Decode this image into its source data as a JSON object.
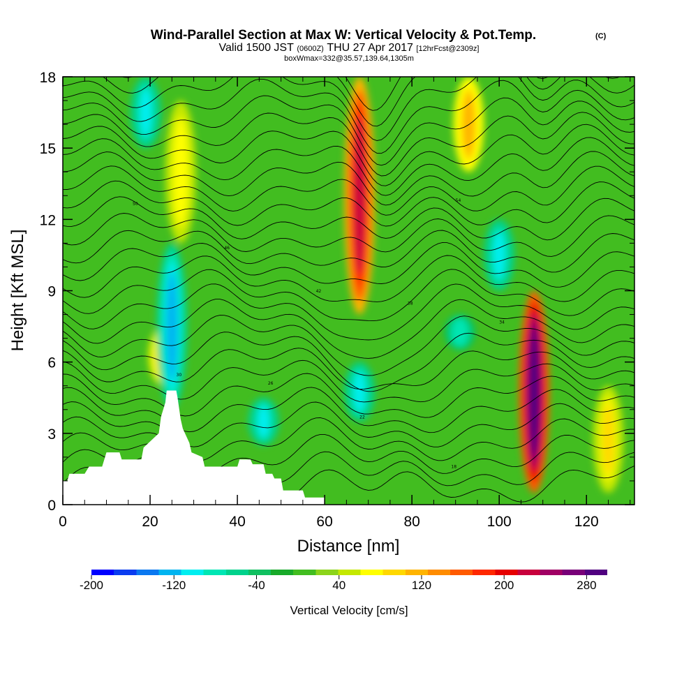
{
  "titles": {
    "main": "Wind-Parallel Section at Max W: Vertical Velocity & Pot.Temp.",
    "copyright": "(C)",
    "valid_prefix": "Valid 1500 JST",
    "valid_utc": "(0600Z)",
    "valid_date": "THU 27 Apr 2017",
    "forecast": "[12hrFcst@2309z]",
    "box": "boxWmax=332@35.57,139.64,1305m"
  },
  "chart_data": {
    "type": "heatmap",
    "xlabel": "Distance [nm]",
    "ylabel": "Height [Kft MSL]",
    "xlim": [
      0,
      131
    ],
    "ylim": [
      0,
      18
    ],
    "x_ticks": [
      0,
      20,
      40,
      60,
      80,
      100,
      120
    ],
    "y_ticks": [
      0,
      3,
      6,
      9,
      12,
      15,
      18
    ],
    "colorbar": {
      "label": "Vertical Velocity [cm/s]",
      "range": [
        -200,
        300
      ],
      "tick_values": [
        -200,
        -120,
        -40,
        40,
        120,
        200,
        280
      ],
      "tick_labels": [
        "-200",
        "-120",
        "-40",
        "40",
        "120",
        "200",
        "280"
      ],
      "colors": [
        "#0000ff",
        "#0a3cf0",
        "#0a78f0",
        "#00b4f0",
        "#00eef0",
        "#00e6b4",
        "#00d28c",
        "#10c060",
        "#18aa2a",
        "#42bd20",
        "#8cd41a",
        "#c4e800",
        "#ffff00",
        "#ffd800",
        "#ffb400",
        "#ff8c00",
        "#ff5a00",
        "#ff2800",
        "#e60000",
        "#c8003c",
        "#a00064",
        "#780078",
        "#500080"
      ]
    },
    "w_features": [
      {
        "type": "updraft",
        "x": 68,
        "z_bottom": 8,
        "z_top": 18,
        "peak_cm_s": 220
      },
      {
        "type": "updraft",
        "x": 108,
        "z_bottom": 0.5,
        "z_top": 9,
        "peak_cm_s": 300
      },
      {
        "type": "updraft",
        "x": 23,
        "z_bottom": 5,
        "z_top": 7.5,
        "peak_cm_s": 110
      },
      {
        "type": "updraft",
        "x": 27,
        "z_bottom": 11,
        "z_top": 17,
        "peak_cm_s": 80
      },
      {
        "type": "updraft",
        "x": 125,
        "z_bottom": 0.5,
        "z_top": 5,
        "peak_cm_s": 90
      },
      {
        "type": "updraft",
        "x": 93,
        "z_bottom": 14,
        "z_top": 18,
        "peak_cm_s": 120
      },
      {
        "type": "downdraft",
        "x": 25,
        "z_bottom": 4,
        "z_top": 11,
        "peak_cm_s": -120
      },
      {
        "type": "downdraft",
        "x": 68,
        "z_bottom": 3.5,
        "z_top": 6,
        "peak_cm_s": -100
      },
      {
        "type": "downdraft",
        "x": 46,
        "z_bottom": 2.5,
        "z_top": 4.5,
        "peak_cm_s": -100
      },
      {
        "type": "downdraft",
        "x": 100,
        "z_bottom": 9,
        "z_top": 12,
        "peak_cm_s": -100
      },
      {
        "type": "downdraft",
        "x": 91,
        "z_bottom": 6.5,
        "z_top": 8,
        "peak_cm_s": -90
      },
      {
        "type": "downdraft",
        "x": 19,
        "z_bottom": 15,
        "z_top": 18,
        "peak_cm_s": -100
      }
    ],
    "terrain": {
      "x": [
        0,
        1,
        1.5,
        5,
        6,
        9,
        10,
        13,
        13.5,
        18,
        18.5,
        22,
        22.5,
        23.5,
        23.8,
        26,
        26.3,
        27,
        27.5,
        29,
        29.5,
        32,
        32.5,
        40,
        40.5,
        43,
        43.5,
        46,
        46.5,
        48,
        48.5,
        50,
        50.5,
        55,
        55.5,
        60
      ],
      "z": [
        1,
        1,
        1.3,
        1.3,
        1.6,
        1.6,
        2.2,
        2.2,
        1.9,
        1.9,
        2.4,
        3.0,
        3.7,
        4.3,
        4.8,
        4.8,
        4.5,
        3.6,
        3.2,
        2.6,
        2.2,
        2.0,
        1.6,
        1.6,
        1.9,
        1.9,
        1.7,
        1.7,
        1.3,
        1.3,
        1.1,
        1.1,
        0.6,
        0.6,
        0.3,
        0.3
      ]
    },
    "theta_contours": {
      "count": 30,
      "labels": [
        "14",
        "16",
        "18",
        "20",
        "22",
        "24",
        "26",
        "28",
        "30",
        "32",
        "34",
        "36",
        "38",
        "40",
        "42",
        "44",
        "46",
        "48",
        "50",
        "52",
        "54",
        "56"
      ]
    }
  }
}
